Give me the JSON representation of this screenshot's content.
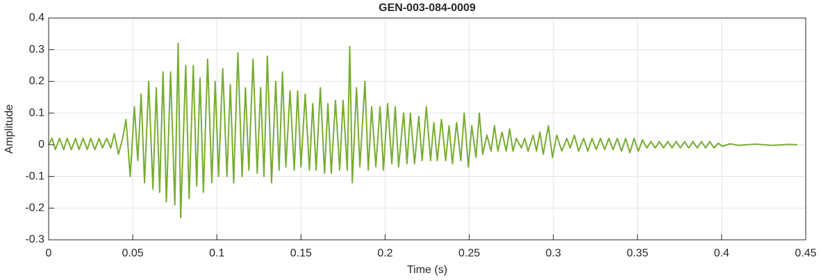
{
  "chart_data": {
    "type": "line",
    "title": "GEN-003-084-0009",
    "x_label": "Time (s)",
    "y_label": "Amplitude",
    "color": "#77ac30",
    "grid": true,
    "xlim": [
      0,
      0.45
    ],
    "xticks": [
      0,
      0.05,
      0.1,
      0.15,
      0.2,
      0.25,
      0.3,
      0.35,
      0.4,
      0.45
    ],
    "ylim": [
      -0.3,
      0.4
    ],
    "yticks": [
      -0.3,
      -0.2,
      -0.1,
      0,
      0.1,
      0.2,
      0.3,
      0.4
    ],
    "x": [
      0,
      0.002,
      0.004,
      0.0065,
      0.009,
      0.011,
      0.0135,
      0.016,
      0.018,
      0.0205,
      0.023,
      0.025,
      0.0275,
      0.03,
      0.032,
      0.0345,
      0.037,
      0.039,
      0.0415,
      0.044,
      0.046,
      0.0485,
      0.051,
      0.053,
      0.055,
      0.057,
      0.0595,
      0.062,
      0.064,
      0.066,
      0.068,
      0.07,
      0.0725,
      0.075,
      0.077,
      0.0785,
      0.0815,
      0.0835,
      0.086,
      0.088,
      0.09,
      0.092,
      0.0945,
      0.097,
      0.099,
      0.101,
      0.1035,
      0.106,
      0.108,
      0.11,
      0.1125,
      0.115,
      0.117,
      0.119,
      0.1215,
      0.124,
      0.126,
      0.128,
      0.13,
      0.1325,
      0.135,
      0.137,
      0.139,
      0.141,
      0.1435,
      0.146,
      0.148,
      0.15,
      0.1525,
      0.155,
      0.157,
      0.159,
      0.1615,
      0.164,
      0.166,
      0.168,
      0.1705,
      0.173,
      0.175,
      0.1775,
      0.179,
      0.1805,
      0.183,
      0.185,
      0.188,
      0.19,
      0.192,
      0.1945,
      0.197,
      0.199,
      0.2015,
      0.204,
      0.206,
      0.208,
      0.211,
      0.213,
      0.215,
      0.2175,
      0.22,
      0.222,
      0.2245,
      0.227,
      0.229,
      0.231,
      0.2335,
      0.236,
      0.238,
      0.24,
      0.2425,
      0.245,
      0.247,
      0.2495,
      0.2515,
      0.254,
      0.256,
      0.258,
      0.2605,
      0.263,
      0.265,
      0.267,
      0.2695,
      0.272,
      0.274,
      0.276,
      0.278,
      0.281,
      0.283,
      0.285,
      0.288,
      0.29,
      0.292,
      0.294,
      0.297,
      0.2995,
      0.302,
      0.305,
      0.308,
      0.31,
      0.3125,
      0.315,
      0.318,
      0.3205,
      0.323,
      0.3255,
      0.328,
      0.3305,
      0.333,
      0.3355,
      0.338,
      0.3405,
      0.343,
      0.3455,
      0.348,
      0.3505,
      0.353,
      0.3555,
      0.358,
      0.3605,
      0.363,
      0.3655,
      0.368,
      0.3705,
      0.373,
      0.3755,
      0.378,
      0.3805,
      0.383,
      0.3855,
      0.388,
      0.3905,
      0.393,
      0.3955,
      0.398,
      0.4005,
      0.405,
      0.41,
      0.42,
      0.43,
      0.44,
      0.445
    ],
    "values": [
      0,
      0.02,
      -0.015,
      0.02,
      -0.015,
      0.02,
      -0.015,
      0.02,
      -0.015,
      0.02,
      -0.015,
      0.02,
      -0.015,
      0.02,
      -0.01,
      0.02,
      -0.01,
      0.035,
      -0.03,
      0.02,
      0.08,
      -0.1,
      0.12,
      -0.05,
      0.16,
      -0.12,
      0.2,
      -0.14,
      0.18,
      -0.15,
      0.23,
      -0.18,
      0.23,
      -0.19,
      0.32,
      -0.23,
      0.25,
      -0.17,
      0.25,
      -0.13,
      0.21,
      -0.15,
      0.27,
      -0.12,
      0.2,
      -0.1,
      0.24,
      -0.1,
      0.19,
      -0.12,
      0.29,
      -0.1,
      0.18,
      -0.08,
      0.27,
      -0.09,
      0.18,
      -0.1,
      0.28,
      -0.12,
      0.2,
      -0.08,
      0.23,
      -0.07,
      0.17,
      -0.08,
      0.17,
      -0.07,
      0.16,
      -0.08,
      0.13,
      -0.08,
      0.18,
      -0.09,
      0.13,
      -0.09,
      0.14,
      -0.08,
      0.14,
      -0.08,
      0.31,
      -0.12,
      0.18,
      -0.07,
      0.2,
      -0.08,
      0.12,
      -0.07,
      0.12,
      -0.08,
      0.13,
      -0.06,
      0.12,
      -0.07,
      0.1,
      -0.06,
      0.1,
      -0.06,
      0.09,
      -0.05,
      0.12,
      -0.05,
      0.07,
      -0.05,
      0.08,
      -0.05,
      0.06,
      -0.06,
      0.07,
      -0.05,
      0.1,
      -0.07,
      0.06,
      -0.04,
      0.1,
      -0.03,
      0.03,
      -0.02,
      0.06,
      -0.02,
      0.04,
      -0.02,
      0.05,
      -0.02,
      0.02,
      -0.01,
      0.02,
      -0.02,
      0.03,
      -0.02,
      0.04,
      -0.03,
      0.06,
      -0.04,
      0.03,
      -0.02,
      0.02,
      -0.01,
      0.03,
      -0.02,
      0.02,
      -0.02,
      0.02,
      -0.015,
      0.02,
      -0.015,
      0.02,
      -0.015,
      0.02,
      -0.02,
      0.02,
      -0.025,
      0.02,
      -0.02,
      0.015,
      -0.01,
      0.01,
      -0.01,
      0.01,
      -0.01,
      0.01,
      -0.01,
      0.01,
      -0.01,
      0.01,
      -0.01,
      0.01,
      -0.01,
      0.01,
      -0.01,
      0.01,
      -0.01,
      0.005,
      -0.005,
      0.003,
      -0.002,
      0.002,
      -0.002,
      0.001,
      0
    ]
  }
}
